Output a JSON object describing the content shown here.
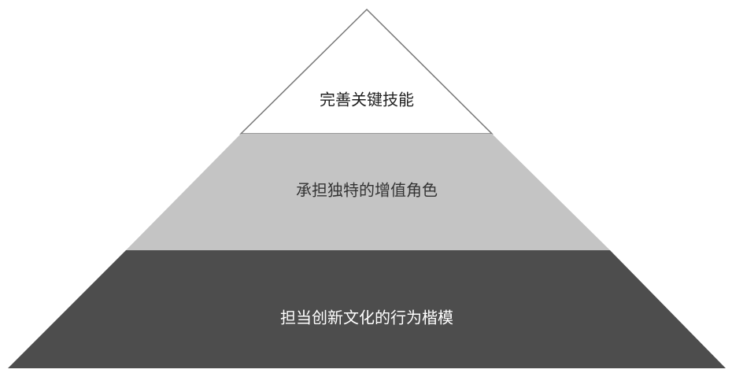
{
  "pyramid": {
    "levels": [
      {
        "label": "完善关键技能"
      },
      {
        "label": "承担独特的增值角色"
      },
      {
        "label": "担当创新文化的行为楷模"
      }
    ]
  }
}
